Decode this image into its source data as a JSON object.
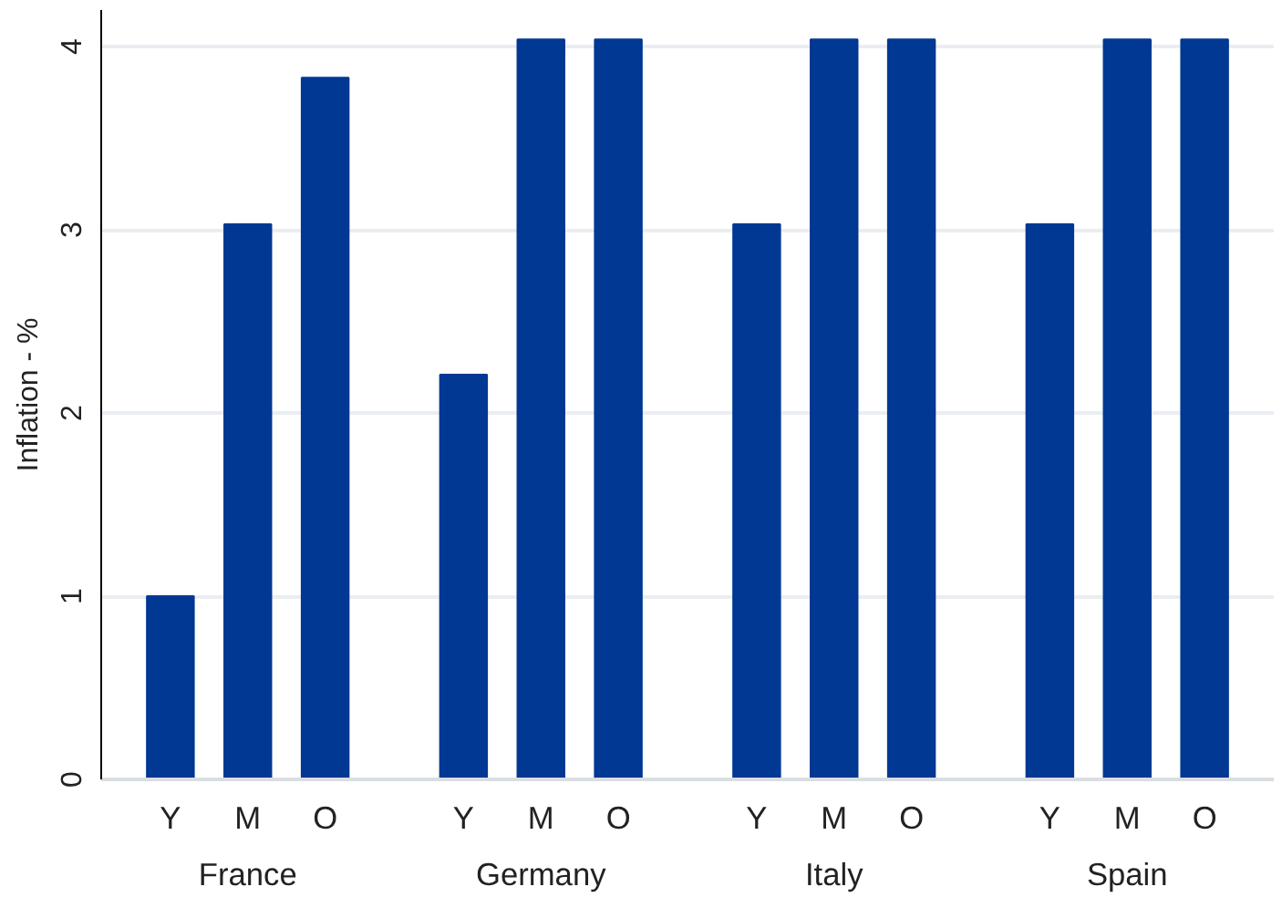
{
  "chart_data": {
    "type": "bar",
    "ylabel": "Inflation - %",
    "categories": [
      "France",
      "Germany",
      "Italy",
      "Spain"
    ],
    "series": [
      {
        "name": "Y",
        "color": "#003893",
        "values": [
          1.0,
          2.21,
          3.03,
          3.03
        ]
      },
      {
        "name": "M",
        "color": "#003893",
        "values": [
          3.03,
          4.04,
          4.04,
          4.04
        ]
      },
      {
        "name": "O",
        "color": "#003893",
        "values": [
          3.83,
          4.04,
          4.04,
          4.04
        ]
      }
    ],
    "ylim": [
      0,
      4.2
    ],
    "yticks": [
      0,
      1,
      2,
      3,
      4
    ],
    "grid": "y",
    "legend": false
  }
}
